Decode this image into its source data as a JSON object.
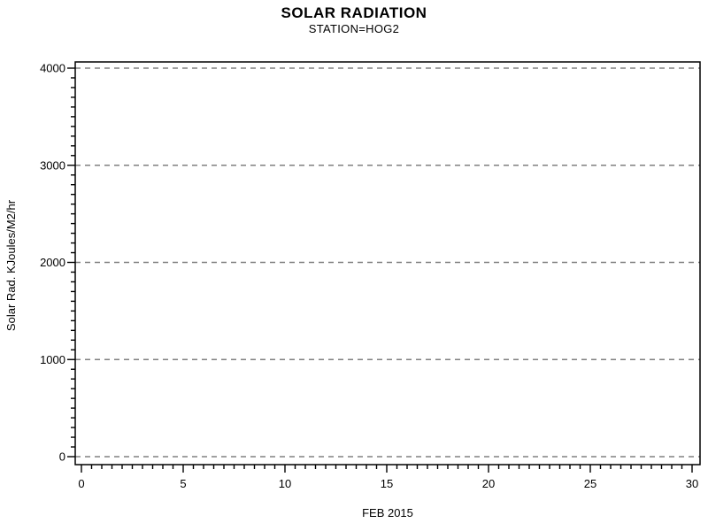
{
  "chart_data": {
    "type": "line",
    "title": "SOLAR RADIATION",
    "subtitle": "STATION=HOG2",
    "xlabel": "FEB 2015",
    "ylabel": "Solar Rad. KJoules/M2/hr",
    "xlim": [
      0,
      30
    ],
    "ylim": [
      0,
      4000
    ],
    "x_major_ticks": [
      0,
      5,
      10,
      15,
      20,
      25,
      30
    ],
    "y_major_ticks": [
      0,
      1000,
      2000,
      3000,
      4000
    ],
    "x_minor_step": 0.5,
    "y_minor_step": 100,
    "grid": {
      "horizontal": true,
      "vertical": false,
      "style": "dashed"
    },
    "frame": true,
    "legend": null,
    "series": []
  },
  "colors": {
    "background": "#ffffff",
    "axis": "#000000",
    "text": "#000000",
    "gridline": "#808080"
  }
}
